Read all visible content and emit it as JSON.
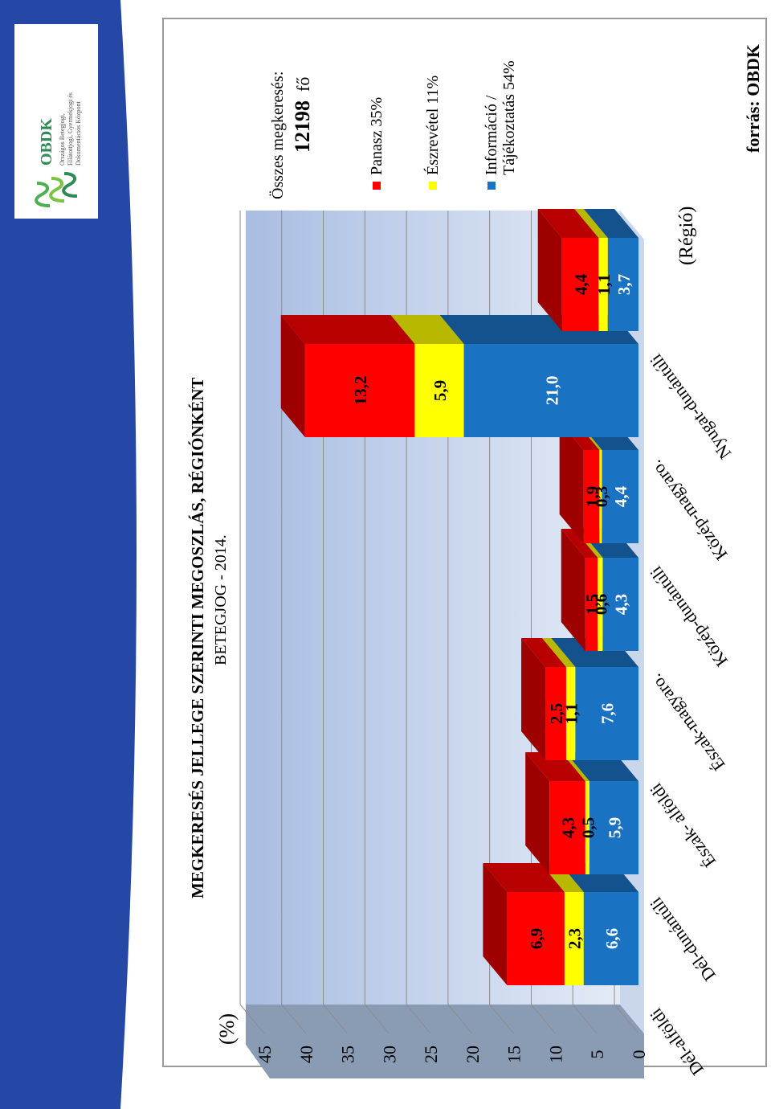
{
  "logo": {
    "brand": "OBDK",
    "line1": "Országos Betegjogi,",
    "line2": "Ellátottjogi, Gyermekjogi és",
    "line3": "Dokumentációs Központ"
  },
  "colors": {
    "sidebar": "#2547a6",
    "panasz": "#ff0000",
    "eszrevetel": "#ffff00",
    "informacio": "#1a72c2",
    "wall": "#b7c9e8"
  },
  "total": {
    "label": "Összes megkeresés:",
    "value": "12198",
    "unit": "fő"
  },
  "source": "forrás: OBDK",
  "chart_data": {
    "type": "bar",
    "stacked": true,
    "title": "MEGKERESÉS JELLEGE SZERINTI MEGOSZLÁS, RÉGIÓNKÉNT",
    "subtitle": "BETEGJOG - 2014.",
    "ylabel": "(%)",
    "xlabel": "(Régió)",
    "ylim": [
      0,
      45
    ],
    "yticks": [
      "0",
      "5",
      "10",
      "15",
      "20",
      "25",
      "30",
      "35",
      "40",
      "45"
    ],
    "categories": [
      "Dél-alföldi",
      "Dél-dunántúli",
      "Észak- alföldi",
      "Észak-magyaro.",
      "Közép-dunántúli",
      "Közép-magyaro.",
      "Nyugat-dunántúli"
    ],
    "series": [
      {
        "name": "Információ / Tájékoztatás 54%",
        "values": [
          6.6,
          5.9,
          7.6,
          4.3,
          4.4,
          21.0,
          3.7
        ],
        "labels": [
          "6,6",
          "5,9",
          "7,6",
          "4,3",
          "4,4",
          "21,0",
          "3,7"
        ]
      },
      {
        "name": "Észrevétel 11%",
        "values": [
          2.3,
          0.5,
          1.1,
          0.6,
          0.3,
          5.9,
          1.1
        ],
        "labels": [
          "2,3",
          "0,5",
          "1,1",
          "0,6",
          "0,3",
          "5,9",
          "1,1"
        ]
      },
      {
        "name": "Panasz 35%",
        "values": [
          6.9,
          4.3,
          2.5,
          1.5,
          1.9,
          13.2,
          4.4
        ],
        "labels": [
          "6,9",
          "4,3",
          "2,5",
          "1,5",
          "1,9",
          "13,2",
          "4,4"
        ]
      }
    ],
    "legend_position": "top",
    "grid": true
  }
}
